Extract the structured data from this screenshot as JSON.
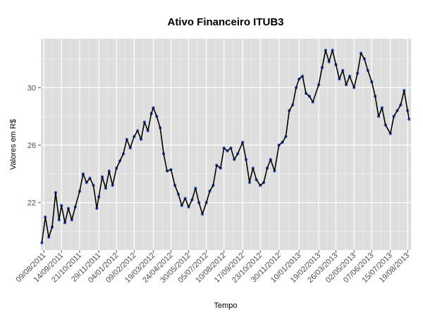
{
  "chart_data": {
    "type": "line",
    "title": "Ativo Financeiro ITUB3",
    "x_label": "Tempo",
    "y_label": "Valores em R$",
    "color": "#000000",
    "point_color": "#3a5fcd",
    "grid": true,
    "xlim": [
      "2011-08-03",
      "2013-08-26"
    ],
    "ylim": [
      18.7,
      33.4
    ],
    "yticks": [
      22,
      26,
      30
    ],
    "xticks": [
      {
        "value": "2011-08-09",
        "label": "09/08/2011"
      },
      {
        "value": "2011-09-14",
        "label": "14/09/2011"
      },
      {
        "value": "2011-10-21",
        "label": "21/10/2011"
      },
      {
        "value": "2011-11-29",
        "label": "29/11/2011"
      },
      {
        "value": "2012-01-04",
        "label": "04/01/2012"
      },
      {
        "value": "2012-02-09",
        "label": "09/02/2012"
      },
      {
        "value": "2012-03-19",
        "label": "19/03/2012"
      },
      {
        "value": "2012-04-24",
        "label": "24/04/2012"
      },
      {
        "value": "2012-05-30",
        "label": "30/05/2012"
      },
      {
        "value": "2012-07-05",
        "label": "05/07/2012"
      },
      {
        "value": "2012-08-10",
        "label": "10/08/2012"
      },
      {
        "value": "2012-09-17",
        "label": "17/09/2012"
      },
      {
        "value": "2012-10-23",
        "label": "23/10/2012"
      },
      {
        "value": "2012-11-30",
        "label": "30/11/2012"
      },
      {
        "value": "2013-01-10",
        "label": "10/01/2013"
      },
      {
        "value": "2013-02-19",
        "label": "19/02/2013"
      },
      {
        "value": "2013-03-26",
        "label": "26/03/2013"
      },
      {
        "value": "2013-05-02",
        "label": "02/05/2013"
      },
      {
        "value": "2013-06-07",
        "label": "07/06/2013"
      },
      {
        "value": "2013-07-15",
        "label": "15/07/2013"
      },
      {
        "value": "2013-08-19",
        "label": "19/08/2013"
      }
    ],
    "x": [
      "2011-08-05",
      "2011-08-12",
      "2011-08-19",
      "2011-08-26",
      "2011-09-02",
      "2011-09-09",
      "2011-09-14",
      "2011-09-21",
      "2011-09-28",
      "2011-10-05",
      "2011-10-12",
      "2011-10-21",
      "2011-10-28",
      "2011-11-04",
      "2011-11-11",
      "2011-11-18",
      "2011-11-25",
      "2011-11-29",
      "2011-12-06",
      "2011-12-13",
      "2011-12-20",
      "2011-12-27",
      "2012-01-04",
      "2012-01-11",
      "2012-01-18",
      "2012-01-25",
      "2012-02-01",
      "2012-02-09",
      "2012-02-16",
      "2012-02-23",
      "2012-03-01",
      "2012-03-08",
      "2012-03-15",
      "2012-03-19",
      "2012-03-26",
      "2012-04-02",
      "2012-04-09",
      "2012-04-16",
      "2012-04-24",
      "2012-05-02",
      "2012-05-09",
      "2012-05-16",
      "2012-05-23",
      "2012-05-30",
      "2012-06-06",
      "2012-06-13",
      "2012-06-20",
      "2012-06-27",
      "2012-07-05",
      "2012-07-12",
      "2012-07-19",
      "2012-07-26",
      "2012-08-03",
      "2012-08-10",
      "2012-08-17",
      "2012-08-24",
      "2012-08-31",
      "2012-09-07",
      "2012-09-17",
      "2012-09-24",
      "2012-10-01",
      "2012-10-08",
      "2012-10-15",
      "2012-10-23",
      "2012-10-30",
      "2012-11-06",
      "2012-11-13",
      "2012-11-21",
      "2012-11-30",
      "2012-12-07",
      "2012-12-14",
      "2012-12-21",
      "2012-12-28",
      "2013-01-04",
      "2013-01-10",
      "2013-01-17",
      "2013-01-24",
      "2013-01-31",
      "2013-02-07",
      "2013-02-19",
      "2013-02-26",
      "2013-03-05",
      "2013-03-12",
      "2013-03-19",
      "2013-03-26",
      "2013-04-02",
      "2013-04-09",
      "2013-04-16",
      "2013-04-23",
      "2013-05-02",
      "2013-05-09",
      "2013-05-16",
      "2013-05-23",
      "2013-05-30",
      "2013-06-07",
      "2013-06-14",
      "2013-06-21",
      "2013-06-28",
      "2013-07-05",
      "2013-07-15",
      "2013-07-22",
      "2013-07-29",
      "2013-08-05",
      "2013-08-12",
      "2013-08-19",
      "2013-08-22"
    ],
    "values": [
      19.2,
      21.0,
      19.6,
      20.3,
      22.7,
      20.8,
      21.8,
      20.6,
      21.6,
      20.8,
      21.7,
      22.8,
      24.0,
      23.4,
      23.7,
      23.2,
      21.6,
      22.4,
      23.8,
      23.0,
      24.2,
      23.2,
      24.4,
      24.9,
      25.4,
      26.4,
      25.8,
      26.6,
      27.0,
      26.4,
      27.6,
      27.0,
      28.2,
      28.6,
      28.0,
      27.2,
      25.4,
      24.2,
      24.3,
      23.2,
      22.6,
      21.8,
      22.3,
      21.7,
      22.2,
      23.0,
      22.0,
      21.2,
      22.0,
      22.8,
      23.2,
      24.6,
      24.4,
      25.8,
      25.6,
      25.8,
      25.0,
      25.4,
      26.2,
      25.0,
      23.4,
      24.4,
      23.6,
      23.2,
      23.4,
      24.4,
      25.0,
      24.2,
      26.0,
      26.2,
      26.6,
      28.4,
      28.8,
      30.0,
      30.6,
      30.8,
      29.6,
      29.4,
      29.0,
      30.2,
      31.4,
      32.6,
      31.8,
      32.6,
      31.6,
      30.6,
      31.2,
      30.2,
      30.8,
      30.0,
      31.0,
      32.4,
      32.0,
      31.2,
      30.4,
      29.4,
      28.0,
      28.6,
      27.4,
      26.8,
      28.0,
      28.4,
      28.8,
      29.8,
      28.4,
      27.8
    ]
  }
}
